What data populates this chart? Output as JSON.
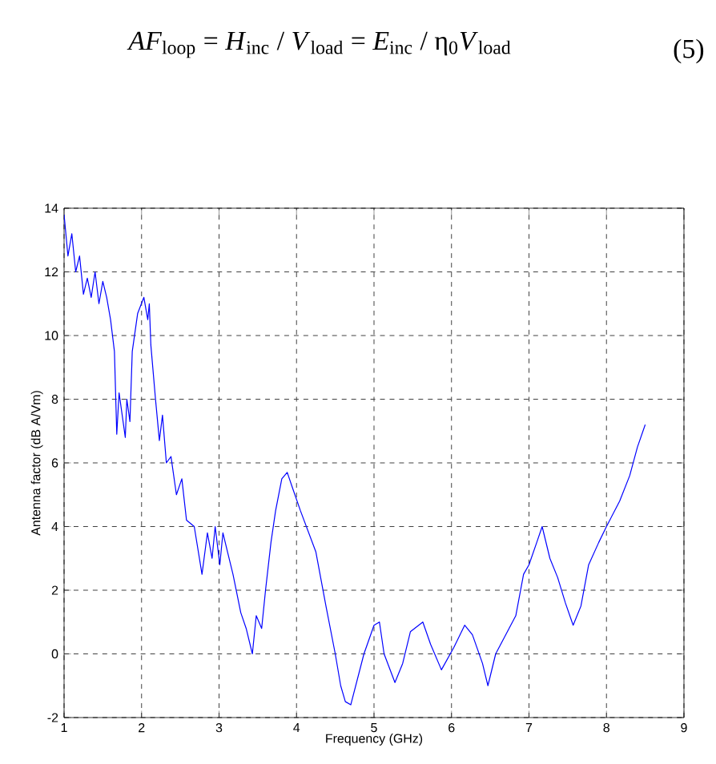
{
  "chart_data": {
    "type": "line",
    "xlabel": "Frequency (GHz)",
    "ylabel": "Antenna factor (dB A/Vm)",
    "annotations": [
      "*AF*$_{loop}$ = *H*$_{inc}$ / *V*$_{load}$ = *E*$_{inc}$ / η$_{0}$*V*$_{load}$",
      "(5)"
    ],
    "xlim": [
      1,
      9
    ],
    "ylim": [
      -2,
      14
    ],
    "xticks": [
      1,
      2,
      3,
      4,
      5,
      6,
      7,
      8,
      9
    ],
    "yticks": [
      -2,
      0,
      2,
      4,
      6,
      8,
      10,
      12,
      14
    ],
    "grid": true,
    "line_style": "solid",
    "series": [
      {
        "color": "#0000ff",
        "x": [
          1.0,
          1.05,
          1.1,
          1.15,
          1.2,
          1.25,
          1.3,
          1.35,
          1.4,
          1.45,
          1.5,
          1.55,
          1.6,
          1.65,
          1.68,
          1.71,
          1.75,
          1.79,
          1.81,
          1.85,
          1.88,
          1.95,
          2.03,
          2.08,
          2.1,
          2.12,
          2.18,
          2.23,
          2.27,
          2.32,
          2.38,
          2.45,
          2.52,
          2.58,
          2.68,
          2.78,
          2.85,
          2.91,
          2.95,
          3.01,
          3.05,
          3.11,
          3.18,
          3.28,
          3.35,
          3.43,
          3.48,
          3.55,
          3.6,
          3.67,
          3.73,
          3.81,
          3.88,
          3.95,
          4.05,
          4.25,
          4.38,
          4.5,
          4.57,
          4.63,
          4.7,
          4.87,
          5.0,
          5.07,
          5.13,
          5.27,
          5.37,
          5.47,
          5.63,
          5.73,
          5.87,
          6.03,
          6.17,
          6.27,
          6.4,
          6.47,
          6.57,
          6.7,
          6.83,
          6.93,
          7.0,
          7.1,
          7.17,
          7.27,
          7.37,
          7.47,
          7.57,
          7.67,
          7.77,
          7.9,
          8.0,
          8.17,
          8.3,
          8.4,
          8.5
        ],
        "values": [
          13.8,
          12.5,
          13.2,
          12.0,
          12.5,
          11.3,
          11.8,
          11.2,
          12.0,
          11.0,
          11.7,
          11.2,
          10.5,
          9.5,
          6.9,
          8.2,
          7.5,
          6.8,
          8.0,
          7.3,
          9.5,
          10.7,
          11.2,
          10.5,
          11.0,
          9.7,
          8.0,
          6.7,
          7.5,
          6.0,
          6.2,
          5.0,
          5.5,
          4.2,
          4.0,
          2.5,
          3.8,
          3.0,
          4.0,
          2.8,
          3.8,
          3.2,
          2.5,
          1.3,
          0.8,
          0.0,
          1.2,
          0.8,
          2.0,
          3.5,
          4.5,
          5.5,
          5.7,
          5.2,
          4.5,
          3.2,
          1.5,
          0.0,
          -1.0,
          -1.5,
          -1.6,
          0.0,
          0.9,
          1.0,
          0.0,
          -0.9,
          -0.3,
          0.7,
          1.0,
          0.3,
          -0.5,
          0.2,
          0.9,
          0.6,
          -0.3,
          -1.0,
          0.0,
          0.6,
          1.2,
          2.5,
          2.8,
          3.5,
          4.0,
          3.0,
          2.4,
          1.6,
          0.9,
          1.5,
          2.8,
          3.5,
          4.0,
          4.8,
          5.6,
          6.5,
          7.2
        ]
      }
    ]
  }
}
